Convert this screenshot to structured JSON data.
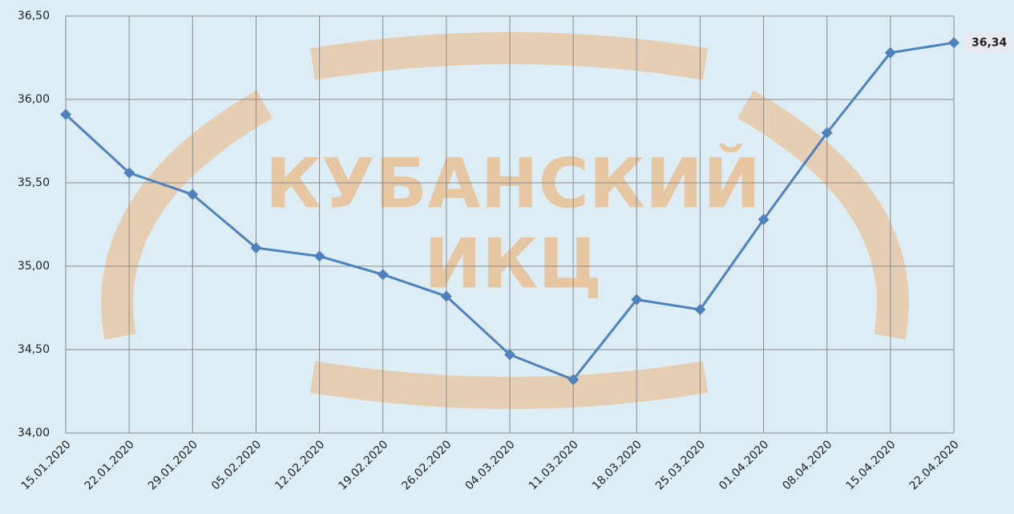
{
  "chart_data": {
    "type": "line",
    "watermark": [
      "КУБАНСКИЙ",
      "ИКЦ"
    ],
    "categories": [
      "15.01.2020",
      "22.01.2020",
      "29.01.2020",
      "05.02.2020",
      "12.02.2020",
      "19.02.2020",
      "26.02.2020",
      "04.03.2020",
      "11.03.2020",
      "18.03.2020",
      "25.03.2020",
      "01.04.2020",
      "08.04.2020",
      "15.04.2020",
      "22.04.2020"
    ],
    "series": [
      {
        "color": "#4f81bd",
        "values": [
          35.91,
          35.56,
          35.43,
          35.11,
          35.06,
          34.95,
          34.82,
          34.47,
          34.32,
          34.8,
          34.74,
          35.28,
          35.8,
          36.28,
          36.34
        ],
        "value_labels": [
          null,
          null,
          null,
          null,
          null,
          null,
          null,
          null,
          null,
          null,
          null,
          null,
          null,
          null,
          "36,34"
        ]
      }
    ],
    "ylim": [
      34.0,
      36.5
    ],
    "yticks": [
      {
        "value": 34.0,
        "label": "34,00"
      },
      {
        "value": 34.5,
        "label": "34,50"
      },
      {
        "value": 35.0,
        "label": "35,00"
      },
      {
        "value": 35.5,
        "label": "35,50"
      },
      {
        "value": 36.0,
        "label": "36,00"
      },
      {
        "value": 36.5,
        "label": "36,50"
      }
    ],
    "grid": true
  }
}
